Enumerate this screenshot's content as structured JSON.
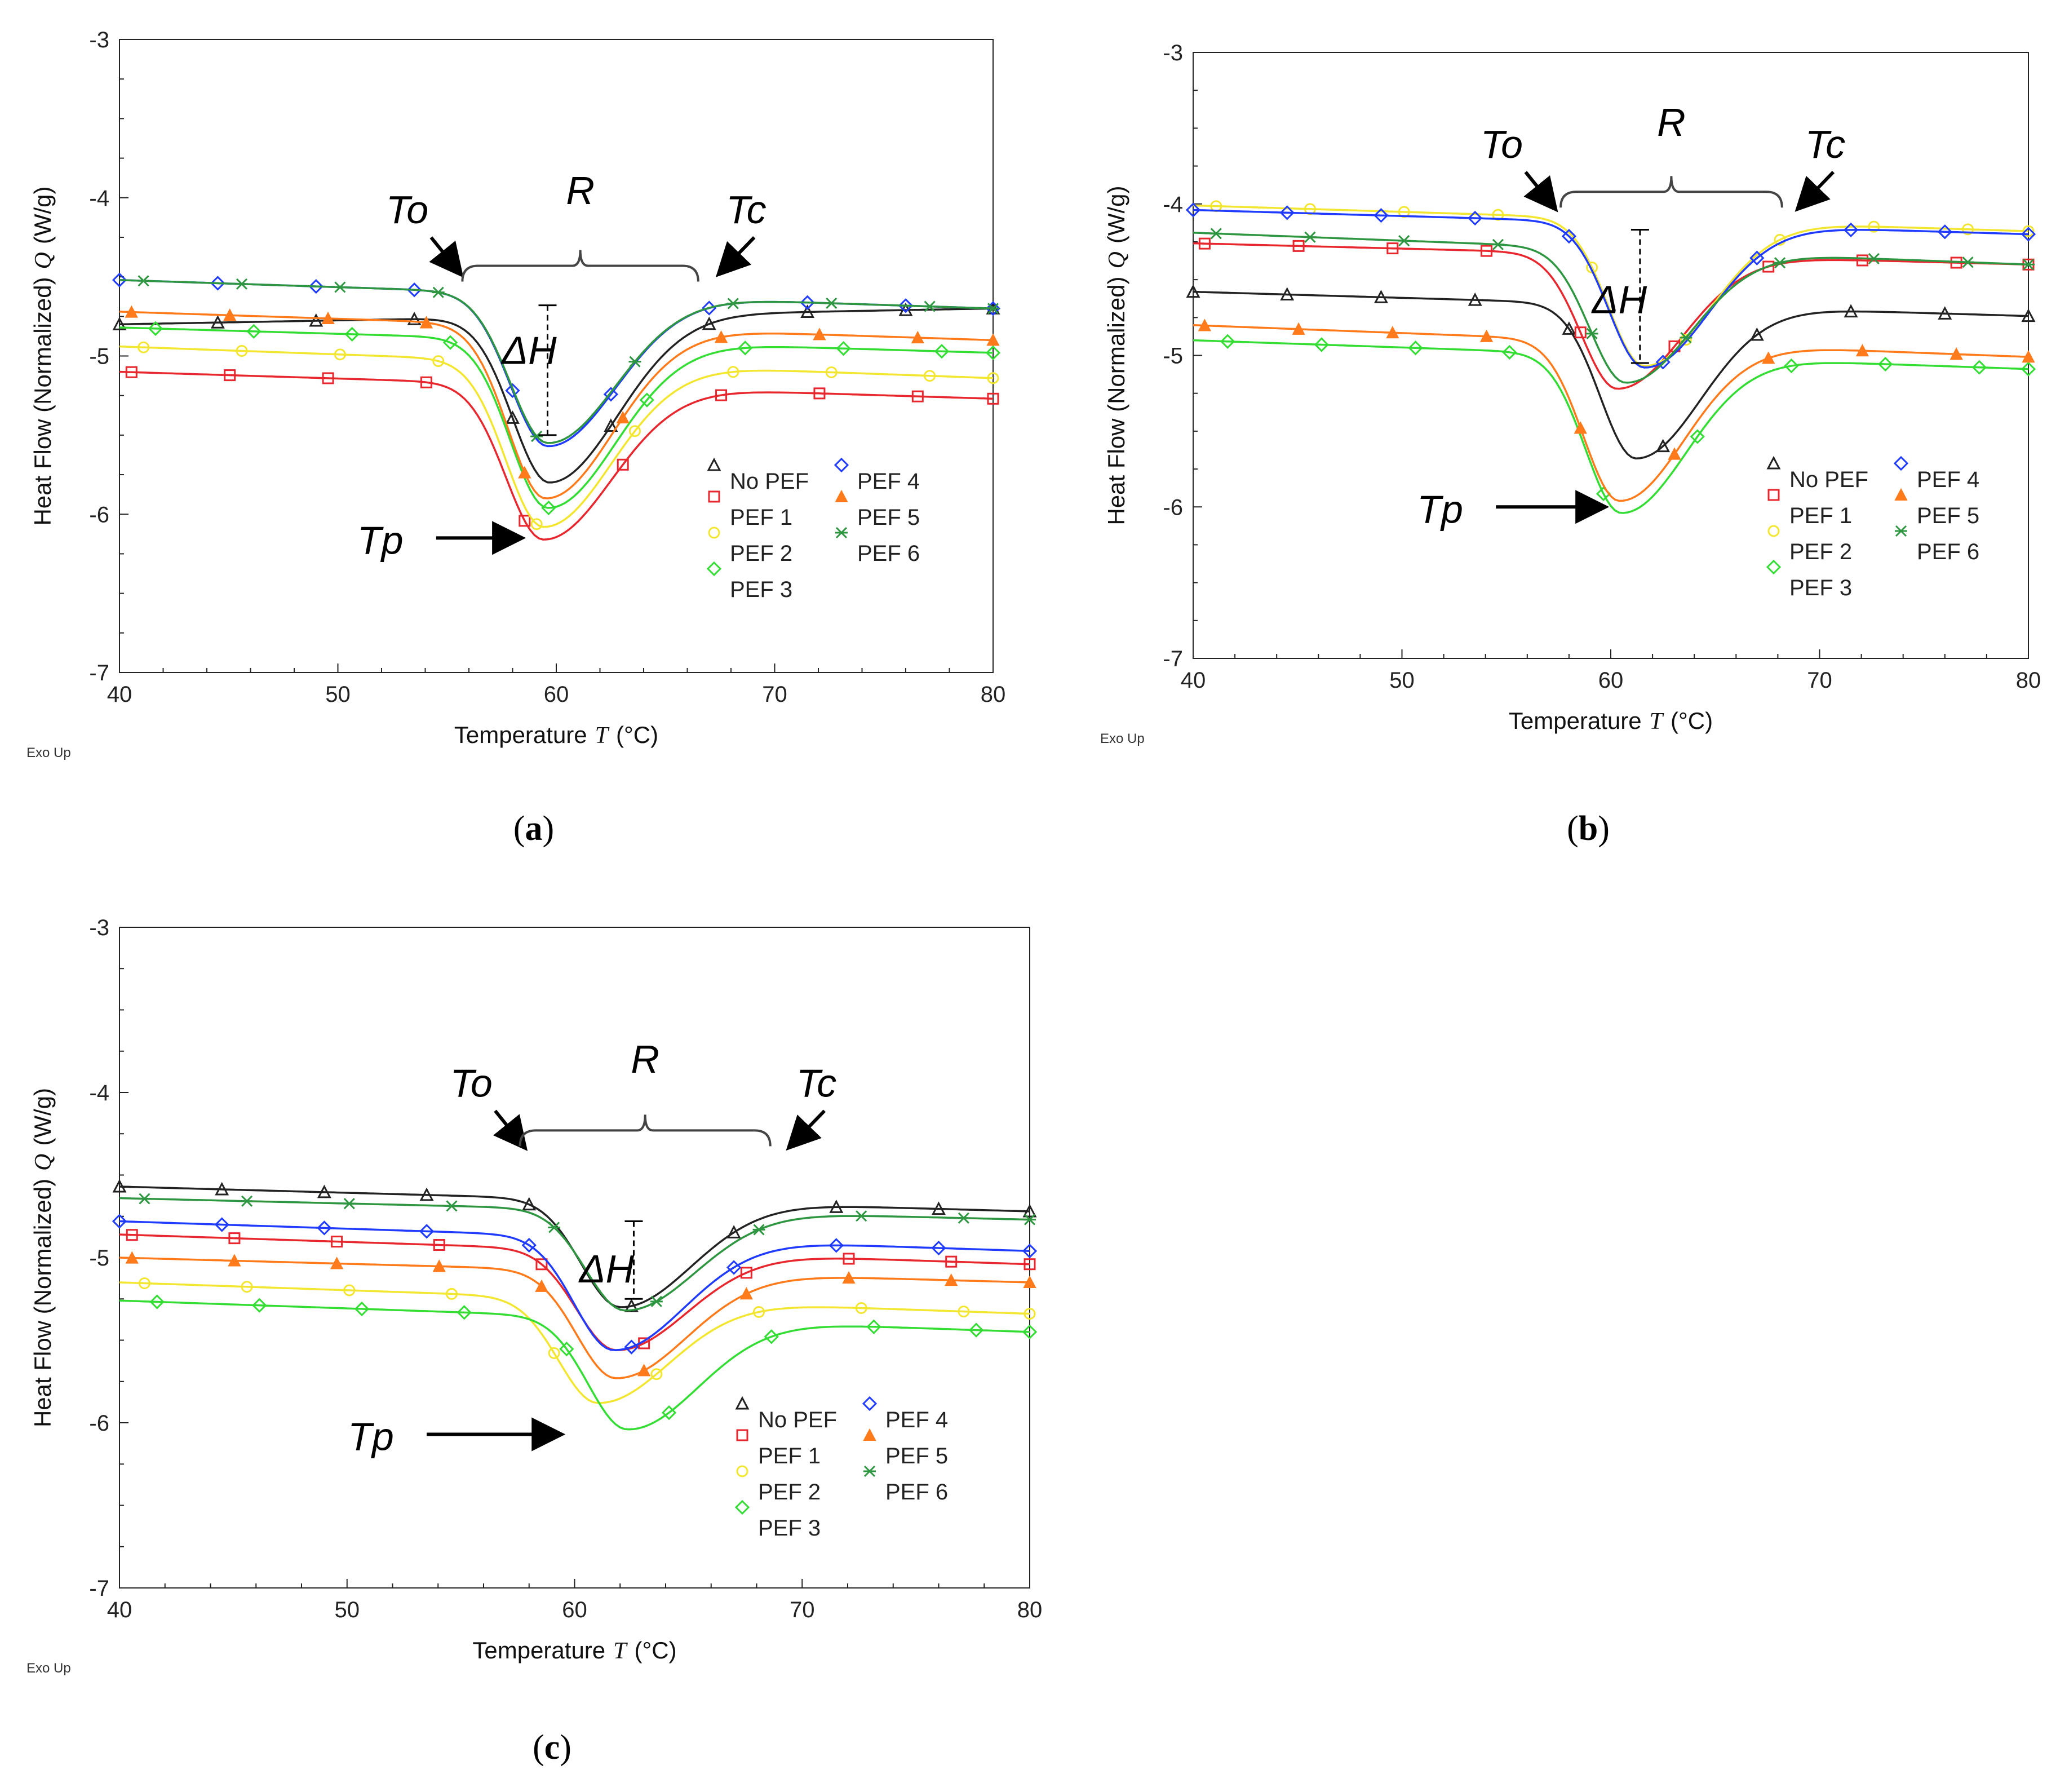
{
  "colors": {
    "No PEF": "#222222",
    "PEF 1": "#e8262d",
    "PEF 2": "#f2e630",
    "PEF 3": "#33dd33",
    "PEF 4": "#1f3bff",
    "PEF 5": "#ff7a1a",
    "PEF 6": "#2e9640"
  },
  "chart_data": [
    {
      "id": "a",
      "type": "line",
      "panel_label": "a",
      "exo_label": "Exo Up",
      "xlabel": "Temperature",
      "xlabel_symbol": "T",
      "xlabel_unit": "(°C)",
      "ylabel": "Heat Flow (Normalized)",
      "ylabel_symbol": "Q",
      "ylabel_unit": "(W/g)",
      "xlim": [
        40,
        80
      ],
      "ylim": [
        -7,
        -3
      ],
      "xticks": [
        40,
        50,
        60,
        70,
        80
      ],
      "yticks": [
        -3,
        -4,
        -5,
        -6,
        -7
      ],
      "annotations": {
        "To": "To",
        "R": "R",
        "Tc": "Tc",
        "dH": "ΔH",
        "Tp": "Tp"
      },
      "legend_col1": [
        "No PEF",
        "PEF 1",
        "PEF 2",
        "PEF 3"
      ],
      "legend_col2": [
        "PEF 4",
        "PEF 5",
        "PEF 6"
      ],
      "series": [
        {
          "name": "No PEF",
          "base_left": -4.8,
          "base_right": -4.7,
          "peak_x": 59.7,
          "peak_y": -5.8,
          "marker": "triangle"
        },
        {
          "name": "PEF 1",
          "base_left": -5.1,
          "base_right": -5.27,
          "peak_x": 59.4,
          "peak_y": -6.16,
          "marker": "square"
        },
        {
          "name": "PEF 2",
          "base_left": -4.94,
          "base_right": -5.14,
          "peak_x": 59.4,
          "peak_y": -6.08,
          "marker": "circle"
        },
        {
          "name": "PEF 3",
          "base_left": -4.82,
          "base_right": -4.98,
          "peak_x": 59.6,
          "peak_y": -5.96,
          "marker": "diamond"
        },
        {
          "name": "PEF 4",
          "base_left": -4.52,
          "base_right": -4.7,
          "peak_x": 59.6,
          "peak_y": -5.57,
          "marker": "diamond"
        },
        {
          "name": "PEF 5",
          "base_left": -4.72,
          "base_right": -4.9,
          "peak_x": 59.5,
          "peak_y": -5.9,
          "marker": "filled-triangle"
        },
        {
          "name": "PEF 6",
          "base_left": -4.52,
          "base_right": -4.7,
          "peak_x": 59.6,
          "peak_y": -5.55,
          "marker": "star"
        }
      ]
    },
    {
      "id": "b",
      "type": "line",
      "panel_label": "b",
      "exo_label": "Exo Up",
      "xlabel": "Temperature",
      "xlabel_symbol": "T",
      "xlabel_unit": "(°C)",
      "ylabel": "Heat Flow (Normalized)",
      "ylabel_symbol": "Q",
      "ylabel_unit": "(W/g)",
      "xlim": [
        40,
        80
      ],
      "ylim": [
        -7,
        -3
      ],
      "xticks": [
        40,
        50,
        60,
        70,
        80
      ],
      "yticks": [
        -3,
        -4,
        -5,
        -6,
        -7
      ],
      "annotations": {
        "To": "To",
        "R": "R",
        "Tc": "Tc",
        "dH": "ΔH",
        "Tp": "Tp"
      },
      "legend_col1": [
        "No PEF",
        "PEF 1",
        "PEF 2",
        "PEF 3"
      ],
      "legend_col2": [
        "PEF 4",
        "PEF 5",
        "PEF 6"
      ],
      "series": [
        {
          "name": "No PEF",
          "base_left": -4.58,
          "base_right": -4.74,
          "peak_x": 61.2,
          "peak_y": -5.68,
          "marker": "triangle"
        },
        {
          "name": "PEF 1",
          "base_left": -4.26,
          "base_right": -4.4,
          "peak_x": 60.3,
          "peak_y": -5.22,
          "marker": "square"
        },
        {
          "name": "PEF 2",
          "base_left": -4.01,
          "base_right": -4.18,
          "peak_x": 61.6,
          "peak_y": -5.07,
          "marker": "circle"
        },
        {
          "name": "PEF 3",
          "base_left": -4.9,
          "base_right": -5.09,
          "peak_x": 60.5,
          "peak_y": -6.04,
          "marker": "diamond"
        },
        {
          "name": "PEF 4",
          "base_left": -4.04,
          "base_right": -4.2,
          "peak_x": 61.6,
          "peak_y": -5.08,
          "marker": "diamond"
        },
        {
          "name": "PEF 5",
          "base_left": -4.8,
          "base_right": -5.01,
          "peak_x": 60.4,
          "peak_y": -5.96,
          "marker": "filled-triangle"
        },
        {
          "name": "PEF 6",
          "base_left": -4.19,
          "base_right": -4.4,
          "peak_x": 60.7,
          "peak_y": -5.18,
          "marker": "star"
        }
      ]
    },
    {
      "id": "c",
      "type": "line",
      "panel_label": "c",
      "exo_label": "Exo Up",
      "xlabel": "Temperature",
      "xlabel_symbol": "T",
      "xlabel_unit": "(°C)",
      "ylabel": "Heat Flow (Normalized)",
      "ylabel_symbol": "Q",
      "ylabel_unit": "(W/g)",
      "xlim": [
        40,
        80
      ],
      "ylim": [
        -7,
        -3
      ],
      "xticks": [
        40,
        50,
        60,
        70,
        80
      ],
      "yticks": [
        -3,
        -4,
        -5,
        -6,
        -7
      ],
      "annotations": {
        "To": "To",
        "R": "R",
        "Tc": "Tc",
        "dH": "ΔH",
        "Tp": "Tp"
      },
      "legend_col1": [
        "No PEF",
        "PEF 1",
        "PEF 2",
        "PEF 3"
      ],
      "legend_col2": [
        "PEF 4",
        "PEF 5",
        "PEF 6"
      ],
      "series": [
        {
          "name": "No PEF",
          "base_left": -4.57,
          "base_right": -4.72,
          "peak_x": 62.0,
          "peak_y": -5.3,
          "marker": "triangle"
        },
        {
          "name": "PEF 1",
          "base_left": -4.86,
          "base_right": -5.04,
          "peak_x": 61.8,
          "peak_y": -5.56,
          "marker": "square"
        },
        {
          "name": "PEF 2",
          "base_left": -5.15,
          "base_right": -5.34,
          "peak_x": 61.0,
          "peak_y": -5.88,
          "marker": "circle"
        },
        {
          "name": "PEF 3",
          "base_left": -5.26,
          "base_right": -5.45,
          "peak_x": 62.3,
          "peak_y": -6.04,
          "marker": "diamond"
        },
        {
          "name": "PEF 4",
          "base_left": -4.78,
          "base_right": -4.96,
          "peak_x": 61.7,
          "peak_y": -5.56,
          "marker": "diamond"
        },
        {
          "name": "PEF 5",
          "base_left": -5.0,
          "base_right": -5.15,
          "peak_x": 61.8,
          "peak_y": -5.73,
          "marker": "filled-triangle"
        },
        {
          "name": "PEF 6",
          "base_left": -4.64,
          "base_right": -4.77,
          "peak_x": 62.2,
          "peak_y": -5.32,
          "marker": "star"
        }
      ]
    }
  ]
}
